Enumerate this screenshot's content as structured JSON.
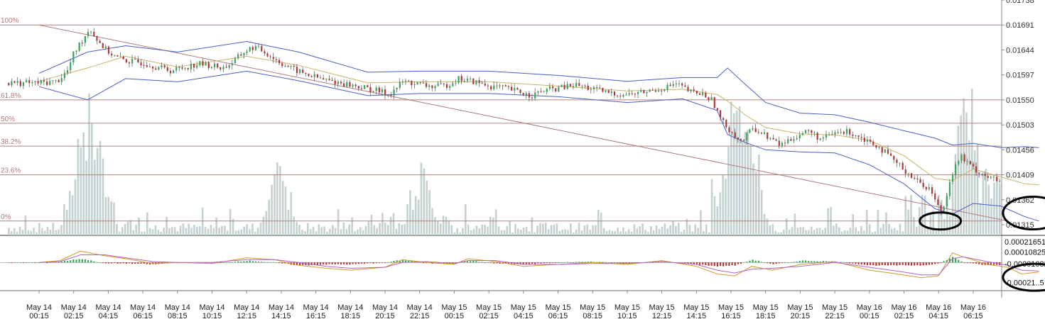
{
  "chart_data": [
    {
      "type": "candlestick",
      "panel": "price",
      "ylim": [
        0.01295,
        0.01738
      ],
      "y_ticks": [
        "0.01738",
        "0.01691",
        "0.01644",
        "0.01597",
        "0.01550",
        "0.01503",
        "0.01456",
        "0.01409",
        "0.01362",
        "0.01315"
      ],
      "x_ticks": [
        [
          "May 14",
          "00:15"
        ],
        [
          "May 14",
          "02:15"
        ],
        [
          "May 14",
          "04:15"
        ],
        [
          "May 14",
          "06:15"
        ],
        [
          "May 14",
          "08:15"
        ],
        [
          "May 14",
          "10:15"
        ],
        [
          "May 14",
          "12:15"
        ],
        [
          "May 14",
          "14:15"
        ],
        [
          "May 14",
          "16:15"
        ],
        [
          "May 14",
          "18:15"
        ],
        [
          "May 14",
          "20:15"
        ],
        [
          "May 14",
          "22:15"
        ],
        [
          "May 15",
          "00:15"
        ],
        [
          "May 15",
          "02:15"
        ],
        [
          "May 15",
          "04:15"
        ],
        [
          "May 15",
          "06:15"
        ],
        [
          "May 15",
          "08:15"
        ],
        [
          "May 15",
          "10:15"
        ],
        [
          "May 15",
          "12:15"
        ],
        [
          "May 15",
          "14:15"
        ],
        [
          "May 15",
          "16:15"
        ],
        [
          "May 15",
          "18:15"
        ],
        [
          "May 15",
          "20:15"
        ],
        [
          "May 15",
          "22:15"
        ],
        [
          "May 16",
          "00:15"
        ],
        [
          "May 16",
          "02:15"
        ],
        [
          "May 16",
          "04:15"
        ],
        [
          "May 16",
          "06:15"
        ]
      ],
      "fib_levels": [
        {
          "label": "100%",
          "value": 0.01691
        },
        {
          "label": "61.8%",
          "value": 0.0155
        },
        {
          "label": "50%",
          "value": 0.01506
        },
        {
          "label": "38.2%",
          "value": 0.01463
        },
        {
          "label": "23.6%",
          "value": 0.01409
        },
        {
          "label": "0%",
          "value": 0.01322
        }
      ],
      "trendline": [
        [
          0.0,
          0.01691
        ],
        [
          28.0,
          0.01322
        ]
      ],
      "close_path": [
        [
          0,
          0.01582
        ],
        [
          0.5,
          0.01585
        ],
        [
          0.8,
          0.01605
        ],
        [
          1.0,
          0.0164
        ],
        [
          1.3,
          0.0167
        ],
        [
          1.45,
          0.01686
        ],
        [
          1.6,
          0.01668
        ],
        [
          1.9,
          0.01645
        ],
        [
          2.2,
          0.0163
        ],
        [
          2.6,
          0.01622
        ],
        [
          3.0,
          0.0162
        ],
        [
          3.4,
          0.01612
        ],
        [
          3.8,
          0.01605
        ],
        [
          4.2,
          0.01612
        ],
        [
          4.6,
          0.01618
        ],
        [
          5.0,
          0.01614
        ],
        [
          5.3,
          0.0161
        ],
        [
          5.6,
          0.01622
        ],
        [
          5.9,
          0.0164
        ],
        [
          6.2,
          0.0165
        ],
        [
          6.5,
          0.0164
        ],
        [
          6.9,
          0.01622
        ],
        [
          7.3,
          0.01608
        ],
        [
          7.7,
          0.01598
        ],
        [
          8.2,
          0.01588
        ],
        [
          8.7,
          0.01582
        ],
        [
          9.2,
          0.01575
        ],
        [
          9.7,
          0.01568
        ],
        [
          10.1,
          0.0156
        ],
        [
          10.5,
          0.01585
        ],
        [
          10.9,
          0.0158
        ],
        [
          11.3,
          0.01575
        ],
        [
          11.7,
          0.01576
        ],
        [
          12.1,
          0.0159
        ],
        [
          12.5,
          0.01585
        ],
        [
          13.0,
          0.01576
        ],
        [
          13.4,
          0.01572
        ],
        [
          13.8,
          0.01566
        ],
        [
          14.2,
          0.01558
        ],
        [
          14.6,
          0.01568
        ],
        [
          15.0,
          0.01572
        ],
        [
          15.5,
          0.01578
        ],
        [
          16.0,
          0.0157
        ],
        [
          16.5,
          0.01562
        ],
        [
          17.0,
          0.0156
        ],
        [
          17.5,
          0.01565
        ],
        [
          18.0,
          0.01572
        ],
        [
          18.4,
          0.0158
        ],
        [
          18.8,
          0.01565
        ],
        [
          19.2,
          0.0156
        ],
        [
          19.45,
          0.01548
        ],
        [
          19.7,
          0.0151
        ],
        [
          20.0,
          0.0149
        ],
        [
          20.3,
          0.0147
        ],
        [
          20.6,
          0.01498
        ],
        [
          21.0,
          0.01482
        ],
        [
          21.4,
          0.01465
        ],
        [
          21.8,
          0.0148
        ],
        [
          22.2,
          0.01492
        ],
        [
          22.6,
          0.01475
        ],
        [
          23.0,
          0.01488
        ],
        [
          23.4,
          0.0149
        ],
        [
          23.8,
          0.01478
        ],
        [
          24.2,
          0.01465
        ],
        [
          24.6,
          0.0144
        ],
        [
          25.0,
          0.01418
        ],
        [
          25.4,
          0.01395
        ],
        [
          25.75,
          0.01382
        ],
        [
          25.95,
          0.0135
        ],
        [
          26.1,
          0.0134
        ],
        [
          26.3,
          0.014
        ],
        [
          26.6,
          0.01445
        ],
        [
          26.9,
          0.01425
        ],
        [
          27.2,
          0.01412
        ],
        [
          27.5,
          0.01402
        ],
        [
          27.8,
          0.01395
        ],
        [
          28.0,
          0.014
        ],
        [
          28.3,
          0.01378
        ],
        [
          28.6,
          0.01362
        ],
        [
          28.9,
          0.01368
        ]
      ],
      "bollinger": {
        "upper": [
          [
            0,
            0.016
          ],
          [
            1.4,
            0.0164
          ],
          [
            2.5,
            0.01652
          ],
          [
            4,
            0.0164
          ],
          [
            6,
            0.0166
          ],
          [
            7.5,
            0.0164
          ],
          [
            9.5,
            0.01602
          ],
          [
            11,
            0.01604
          ],
          [
            13,
            0.01604
          ],
          [
            15,
            0.01596
          ],
          [
            17,
            0.01585
          ],
          [
            18.6,
            0.01592
          ],
          [
            19.6,
            0.01592
          ],
          [
            19.9,
            0.0161
          ],
          [
            20.4,
            0.0158
          ],
          [
            21,
            0.01545
          ],
          [
            22,
            0.01525
          ],
          [
            23,
            0.01522
          ],
          [
            24,
            0.01508
          ],
          [
            25,
            0.01492
          ],
          [
            25.9,
            0.01478
          ],
          [
            26.4,
            0.01465
          ],
          [
            27,
            0.01468
          ],
          [
            27.8,
            0.0146
          ],
          [
            28.5,
            0.01462
          ],
          [
            28.9,
            0.0146
          ]
        ],
        "mid": [
          [
            0,
            0.01585
          ],
          [
            1.4,
            0.0161
          ],
          [
            2.5,
            0.01632
          ],
          [
            4,
            0.01612
          ],
          [
            6,
            0.01632
          ],
          [
            7.5,
            0.01615
          ],
          [
            9.5,
            0.01582
          ],
          [
            11,
            0.01584
          ],
          [
            13,
            0.01584
          ],
          [
            15,
            0.01576
          ],
          [
            17,
            0.01567
          ],
          [
            18.6,
            0.0157
          ],
          [
            19.6,
            0.0156
          ],
          [
            19.9,
            0.01548
          ],
          [
            20.4,
            0.01522
          ],
          [
            21,
            0.01498
          ],
          [
            22,
            0.01486
          ],
          [
            23,
            0.01484
          ],
          [
            24,
            0.01474
          ],
          [
            25,
            0.01445
          ],
          [
            25.9,
            0.01402
          ],
          [
            26.4,
            0.01398
          ],
          [
            27,
            0.0142
          ],
          [
            27.8,
            0.01405
          ],
          [
            28.5,
            0.01392
          ],
          [
            28.9,
            0.0139
          ]
        ],
        "lower": [
          [
            0,
            0.01575
          ],
          [
            1.4,
            0.0155
          ],
          [
            2.5,
            0.0159
          ],
          [
            4,
            0.01584
          ],
          [
            6,
            0.01604
          ],
          [
            7.5,
            0.01586
          ],
          [
            9.5,
            0.01558
          ],
          [
            11,
            0.01562
          ],
          [
            13,
            0.01562
          ],
          [
            15,
            0.01556
          ],
          [
            17,
            0.01545
          ],
          [
            18.6,
            0.01552
          ],
          [
            19.6,
            0.0153
          ],
          [
            19.9,
            0.01485
          ],
          [
            20.4,
            0.0147
          ],
          [
            21,
            0.01456
          ],
          [
            22,
            0.01452
          ],
          [
            23,
            0.0145
          ],
          [
            24,
            0.01428
          ],
          [
            25,
            0.01392
          ],
          [
            25.9,
            0.01345
          ],
          [
            26.4,
            0.01335
          ],
          [
            27,
            0.01355
          ],
          [
            27.8,
            0.0135
          ],
          [
            28.5,
            0.0133
          ],
          [
            28.9,
            0.01322
          ]
        ]
      },
      "volume_spikes": [
        [
          1.25,
          0.7
        ],
        [
          1.7,
          0.55
        ],
        [
          6.9,
          0.5
        ],
        [
          11.0,
          0.45
        ],
        [
          20.0,
          0.65
        ],
        [
          20.5,
          0.45
        ],
        [
          26.8,
          0.85
        ],
        [
          27.8,
          0.4
        ],
        [
          28.4,
          0.48
        ]
      ],
      "annotations": [
        {
          "shape": "ellipse",
          "x": 26.05,
          "value": 0.01322
        },
        {
          "shape": "ellipse",
          "x": 28.5,
          "value": 0.01337
        }
      ]
    },
    {
      "type": "macd",
      "panel": "indicator",
      "ylim": [
        -0.00028,
        0.00024
      ],
      "y_ticks": [
        "0.00021651",
        "0.00010825",
        "-0.00001082",
        "-0.00021..5"
      ],
      "macd_path": [
        [
          0,
          0.0
        ],
        [
          0.6,
          2e-05
        ],
        [
          1.2,
          0.00012
        ],
        [
          1.9,
          7e-05
        ],
        [
          2.5,
          4e-05
        ],
        [
          3.3,
          -1e-05
        ],
        [
          4.0,
          0.0
        ],
        [
          5.0,
          -1e-05
        ],
        [
          6.0,
          5e-05
        ],
        [
          6.8,
          3e-05
        ],
        [
          7.5,
          -3e-05
        ],
        [
          8.3,
          -6e-05
        ],
        [
          9.0,
          -8e-05
        ],
        [
          10.0,
          -5e-05
        ],
        [
          10.5,
          3e-05
        ],
        [
          11.2,
          0.0
        ],
        [
          12.0,
          -2e-05
        ],
        [
          12.4,
          4e-05
        ],
        [
          13.2,
          1e-05
        ],
        [
          14.0,
          -4e-05
        ],
        [
          15.0,
          -2e-05
        ],
        [
          16.0,
          0.0
        ],
        [
          17.0,
          -2e-05
        ],
        [
          18.0,
          2e-05
        ],
        [
          19.0,
          -4e-05
        ],
        [
          19.6,
          -0.00012
        ],
        [
          20.1,
          -0.00014
        ],
        [
          20.6,
          -4e-05
        ],
        [
          21.2,
          -8e-05
        ],
        [
          22.0,
          -2e-05
        ],
        [
          23.0,
          1e-05
        ],
        [
          24.0,
          -8e-05
        ],
        [
          24.8,
          -0.00012
        ],
        [
          25.5,
          -0.00016
        ],
        [
          26.0,
          -0.00014
        ],
        [
          26.4,
          0.0001
        ],
        [
          26.7,
          6e-05
        ],
        [
          27.4,
          -2e-05
        ],
        [
          28.0,
          -5e-05
        ],
        [
          28.4,
          -0.00012
        ],
        [
          28.9,
          -0.0001
        ]
      ],
      "signal_path": [
        [
          0,
          0.0
        ],
        [
          0.6,
          1e-05
        ],
        [
          1.2,
          8e-05
        ],
        [
          1.9,
          8e-05
        ],
        [
          2.5,
          5e-05
        ],
        [
          3.3,
          1e-05
        ],
        [
          4.0,
          0.0
        ],
        [
          5.0,
          0.0
        ],
        [
          6.0,
          3e-05
        ],
        [
          6.8,
          3e-05
        ],
        [
          7.5,
          0.0
        ],
        [
          8.3,
          -4e-05
        ],
        [
          9.0,
          -6e-05
        ],
        [
          10.0,
          -5e-05
        ],
        [
          10.5,
          0.0
        ],
        [
          11.2,
          1e-05
        ],
        [
          12.0,
          -1e-05
        ],
        [
          12.4,
          2e-05
        ],
        [
          13.2,
          2e-05
        ],
        [
          14.0,
          -2e-05
        ],
        [
          15.0,
          -2e-05
        ],
        [
          16.0,
          -1e-05
        ],
        [
          17.0,
          -1e-05
        ],
        [
          18.0,
          1e-05
        ],
        [
          19.0,
          -2e-05
        ],
        [
          19.6,
          -8e-05
        ],
        [
          20.1,
          -0.00011
        ],
        [
          20.6,
          -7e-05
        ],
        [
          21.2,
          -6e-05
        ],
        [
          22.0,
          -4e-05
        ],
        [
          23.0,
          0.0
        ],
        [
          24.0,
          -5e-05
        ],
        [
          24.8,
          -9e-05
        ],
        [
          25.5,
          -0.00013
        ],
        [
          26.0,
          -0.00013
        ],
        [
          26.4,
          4e-05
        ],
        [
          26.7,
          6e-05
        ],
        [
          27.4,
          1e-05
        ],
        [
          28.0,
          -3e-05
        ],
        [
          28.4,
          -8e-05
        ],
        [
          28.9,
          -9e-05
        ]
      ],
      "annotations": [
        {
          "shape": "ellipse",
          "x": 28.5,
          "value": -0.00014
        }
      ]
    }
  ]
}
